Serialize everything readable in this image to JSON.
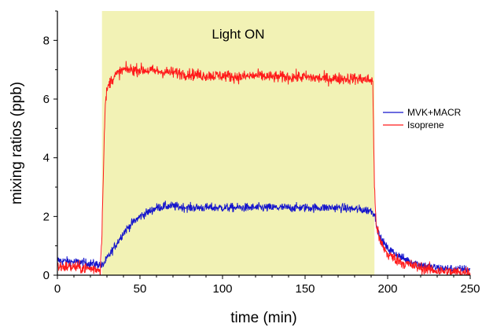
{
  "chart_data": {
    "type": "line",
    "title": "",
    "xlabel": "time (min)",
    "ylabel": "mixing ratios (ppb)",
    "xlim": [
      0,
      250
    ],
    "ylim": [
      0,
      9
    ],
    "x_ticks": [
      0,
      50,
      100,
      150,
      200,
      250
    ],
    "y_ticks": [
      0,
      2,
      4,
      6,
      8
    ],
    "grid": false,
    "legend_position": "right",
    "shaded_region": {
      "x_start": 27,
      "x_end": 192,
      "color": "#f2f2b5",
      "label": "Light ON"
    },
    "series": [
      {
        "name": "MVK+MACR",
        "color": "#1515cc",
        "x": [
          0,
          10,
          20,
          26,
          27,
          30,
          35,
          40,
          45,
          50,
          55,
          60,
          65,
          70,
          80,
          90,
          100,
          110,
          120,
          130,
          140,
          150,
          160,
          170,
          180,
          190,
          192,
          195,
          200,
          210,
          220,
          230,
          240,
          250
        ],
        "y": [
          0.5,
          0.45,
          0.4,
          0.35,
          0.3,
          0.55,
          1.0,
          1.45,
          1.75,
          2.0,
          2.15,
          2.3,
          2.35,
          2.35,
          2.3,
          2.3,
          2.3,
          2.3,
          2.3,
          2.3,
          2.3,
          2.3,
          2.3,
          2.3,
          2.25,
          2.2,
          2.1,
          1.3,
          0.9,
          0.55,
          0.35,
          0.25,
          0.2,
          0.2
        ],
        "noise": 0.15
      },
      {
        "name": "Isoprene",
        "color": "#ff1a1a",
        "x": [
          0,
          10,
          20,
          26,
          27,
          28,
          29,
          30,
          32,
          35,
          40,
          50,
          60,
          70,
          80,
          90,
          100,
          110,
          120,
          130,
          140,
          150,
          160,
          170,
          180,
          190,
          191,
          192,
          193,
          195,
          200,
          210,
          220,
          230,
          240,
          250
        ],
        "y": [
          0.3,
          0.28,
          0.22,
          0.2,
          1.5,
          4.0,
          5.8,
          6.3,
          6.6,
          6.8,
          7.0,
          7.0,
          6.95,
          6.9,
          6.85,
          6.8,
          6.8,
          6.75,
          6.8,
          6.75,
          6.75,
          6.75,
          6.7,
          6.7,
          6.7,
          6.65,
          6.6,
          3.0,
          1.8,
          1.2,
          0.7,
          0.4,
          0.25,
          0.15,
          0.1,
          0.1
        ],
        "noise": 0.2
      }
    ]
  }
}
